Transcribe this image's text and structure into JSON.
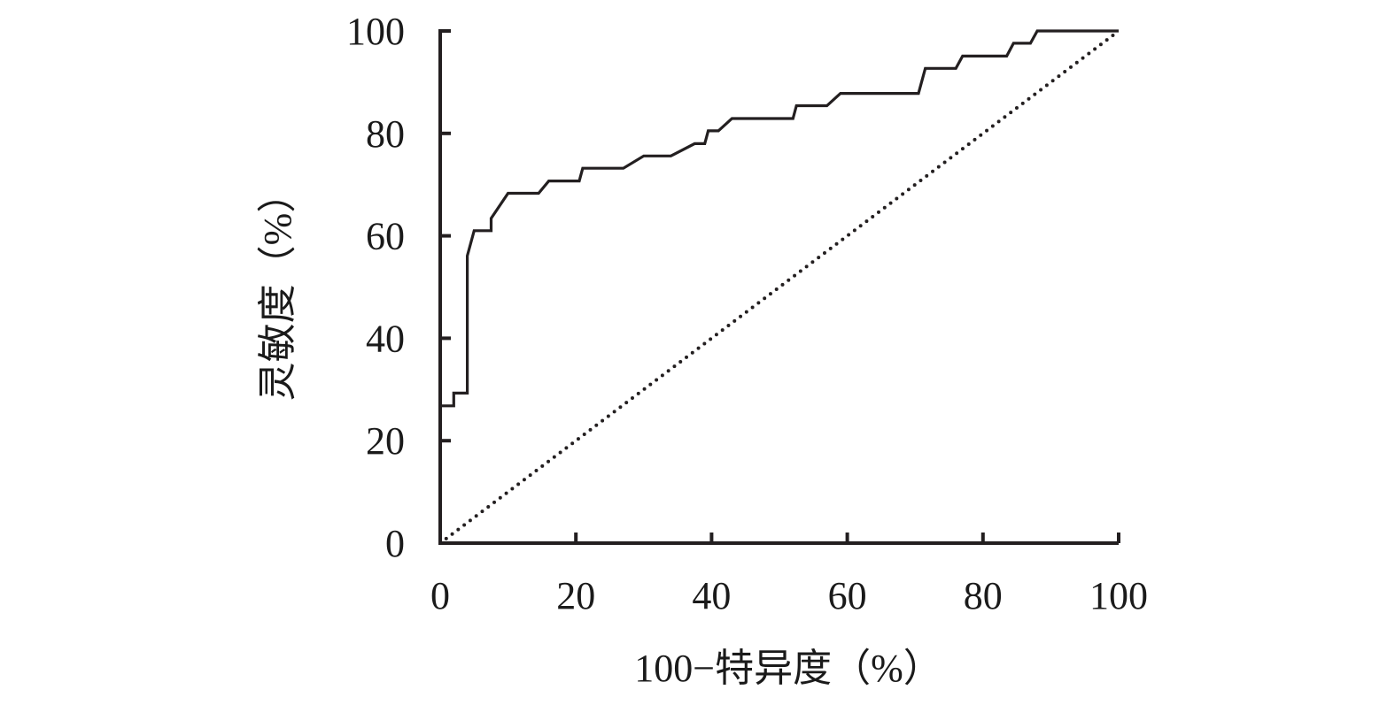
{
  "chart_data": {
    "type": "line",
    "title": "",
    "xlabel": "100−特异度（%）",
    "ylabel": "灵敏度（%）",
    "xlim": [
      0,
      100
    ],
    "ylim": [
      0,
      100
    ],
    "x_ticks": [
      0,
      20,
      40,
      60,
      80,
      100
    ],
    "y_ticks": [
      0,
      20,
      40,
      60,
      80,
      100
    ],
    "x_tick_labels": [
      "0",
      "20",
      "40",
      "60",
      "80",
      "100"
    ],
    "y_tick_labels": [
      "0",
      "20",
      "40",
      "60",
      "80",
      "100"
    ],
    "grid": false,
    "legend": "none",
    "series": [
      {
        "style": "solid",
        "color": "#231f20",
        "points": [
          [
            0,
            26.8
          ],
          [
            2,
            26.8
          ],
          [
            2,
            29.3
          ],
          [
            4,
            29.3
          ],
          [
            4,
            56.1
          ],
          [
            5,
            61.0
          ],
          [
            7.5,
            61.0
          ],
          [
            7.5,
            63.4
          ],
          [
            10,
            68.3
          ],
          [
            14.5,
            68.3
          ],
          [
            16,
            70.7
          ],
          [
            20.5,
            70.7
          ],
          [
            21,
            73.2
          ],
          [
            27,
            73.2
          ],
          [
            30,
            75.6
          ],
          [
            34,
            75.6
          ],
          [
            37.5,
            78.0
          ],
          [
            39,
            78.0
          ],
          [
            39.5,
            80.5
          ],
          [
            41,
            80.5
          ],
          [
            43,
            82.9
          ],
          [
            52,
            82.9
          ],
          [
            52.5,
            85.4
          ],
          [
            57,
            85.4
          ],
          [
            59,
            87.8
          ],
          [
            70.5,
            87.8
          ],
          [
            71.5,
            92.7
          ],
          [
            76,
            92.7
          ],
          [
            77,
            95.1
          ],
          [
            83.5,
            95.1
          ],
          [
            84.5,
            97.6
          ],
          [
            87,
            97.6
          ],
          [
            88,
            100
          ],
          [
            100,
            100
          ]
        ]
      },
      {
        "style": "dotted",
        "color": "#231f20",
        "points": [
          [
            0,
            0
          ],
          [
            100,
            100
          ]
        ]
      }
    ]
  }
}
